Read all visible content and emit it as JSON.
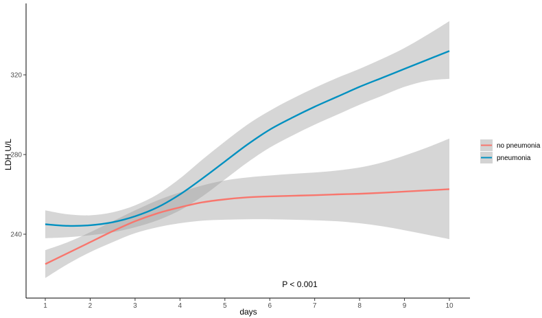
{
  "chart_data": {
    "type": "line",
    "xlabel": "days",
    "ylabel": "LDH U/L",
    "xlim": [
      1,
      10
    ],
    "ylim": [
      215,
      350
    ],
    "x_ticks": [
      1,
      2,
      3,
      4,
      5,
      6,
      7,
      8,
      9,
      10
    ],
    "y_ticks": [
      240,
      280,
      320
    ],
    "grid": false,
    "legend_position": "right",
    "annotation": "P < 0.001",
    "x": [
      1,
      1.5,
      2,
      2.5,
      3,
      3.5,
      4,
      4.5,
      5,
      5.5,
      6,
      6.5,
      7,
      7.5,
      8,
      8.5,
      9,
      9.5,
      10
    ],
    "series": [
      {
        "name": "no pneumonia",
        "color": "#F8766D",
        "values": [
          225,
          230.5,
          236,
          241.5,
          246.5,
          250.5,
          253.5,
          256,
          257.5,
          258.5,
          259,
          259.3,
          259.6,
          260,
          260.3,
          260.8,
          261.4,
          262,
          262.6
        ],
        "ci_lower": [
          218,
          225,
          231,
          236,
          240.5,
          243.5,
          245.5,
          246.8,
          247.3,
          247.5,
          247.5,
          247.3,
          247,
          246.5,
          245.5,
          244,
          242,
          239.8,
          237.5
        ],
        "ci_upper": [
          232,
          236,
          241,
          246.5,
          252,
          257,
          261,
          264.5,
          267,
          268.5,
          269.5,
          270.3,
          271,
          272,
          273.5,
          276,
          279.5,
          283.5,
          288
        ]
      },
      {
        "name": "pneumonia",
        "color": "#0090C0",
        "values": [
          245,
          244.2,
          244.5,
          246,
          249,
          253.5,
          260,
          268,
          276.5,
          285,
          292.5,
          298.5,
          304,
          309,
          314,
          318.5,
          323,
          327.5,
          332
        ]
      },
      {
        "ci_lower": [
          238,
          238.5,
          239.5,
          241,
          243.5,
          247,
          252,
          259,
          267.5,
          276,
          283.5,
          289.5,
          295,
          300,
          305,
          309.5,
          314,
          317,
          318
        ]
      },
      {
        "ci_upper": [
          252,
          250,
          249.5,
          251,
          254.5,
          260,
          268,
          277.5,
          286.5,
          295,
          302,
          308,
          313.5,
          318.5,
          323,
          328,
          333.5,
          340,
          347
        ]
      }
    ]
  }
}
